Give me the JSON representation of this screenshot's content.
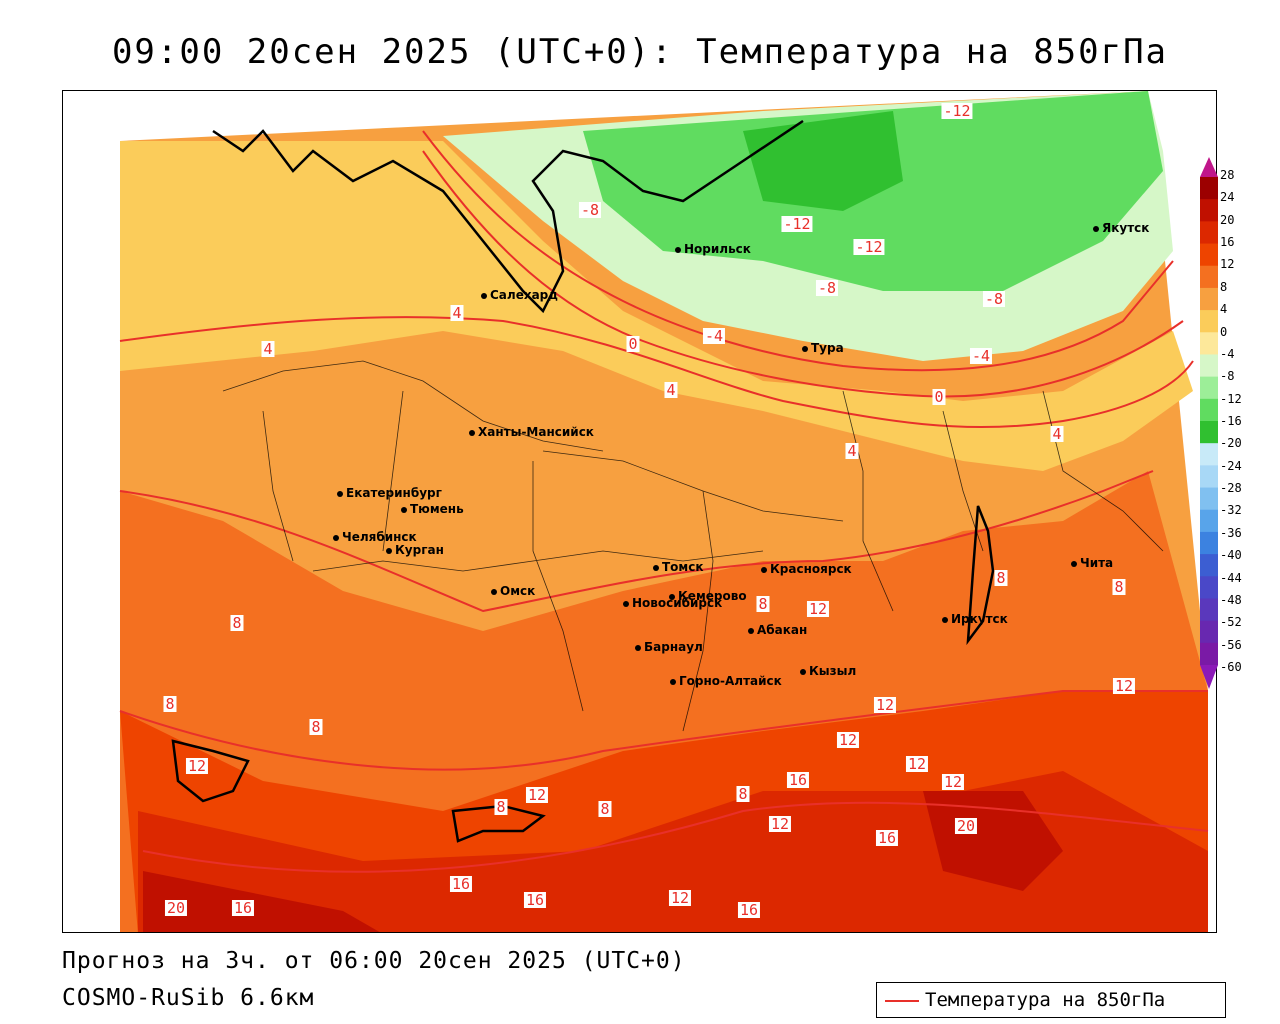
{
  "title": "09:00 20сен 2025 (UTC+0): Температура на 850гПа",
  "footer": {
    "forecast": "Прогноз на 3ч. от 06:00 20сен 2025 (UTC+0)",
    "model": "COSMO-RuSib 6.6км"
  },
  "legend": {
    "label": "Температура на 850гПа",
    "line_color": "#e8302a"
  },
  "colorbar": {
    "ticks": [
      "28",
      "24",
      "20",
      "16",
      "12",
      "8",
      "4",
      "0",
      "-4",
      "-8",
      "-12",
      "-16",
      "-20",
      "-24",
      "-28",
      "-32",
      "-36",
      "-40",
      "-44",
      "-48",
      "-52",
      "-56",
      "-60"
    ],
    "colors": [
      "#9c0000",
      "#c01000",
      "#dc2800",
      "#ee4400",
      "#f47020",
      "#f7a040",
      "#fbcc5a",
      "#fde89a",
      "#d6f7c8",
      "#9cee98",
      "#60dc60",
      "#30c030",
      "#c8eaf8",
      "#a8d8f6",
      "#80c0f0",
      "#58a4ea",
      "#3c82e0",
      "#3c5ed2",
      "#4a48c8",
      "#5a38bc",
      "#6828b0",
      "#7a1aa6"
    ]
  },
  "cities": [
    {
      "name": "Норильск"
    },
    {
      "name": "Якутск"
    },
    {
      "name": "Салехард"
    },
    {
      "name": "Тура"
    },
    {
      "name": "Ханты-Мансийск"
    },
    {
      "name": "Екатеринбург"
    },
    {
      "name": "Тюмень"
    },
    {
      "name": "Челябинск"
    },
    {
      "name": "Курган"
    },
    {
      "name": "Омск"
    },
    {
      "name": "Новосибирск"
    },
    {
      "name": "Томск"
    },
    {
      "name": "Кемерово"
    },
    {
      "name": "Красноярск"
    },
    {
      "name": "Барнаул"
    },
    {
      "name": "Абакан"
    },
    {
      "name": "Горно-Алтайск"
    },
    {
      "name": "Кызыл"
    },
    {
      "name": "Иркутск"
    },
    {
      "name": "Чита"
    }
  ],
  "contour_labels": [
    {
      "text": "-12"
    },
    {
      "text": "-12"
    },
    {
      "text": "-12"
    },
    {
      "text": "-8"
    },
    {
      "text": "-8"
    },
    {
      "text": "-8"
    },
    {
      "text": "-4"
    },
    {
      "text": "-4"
    },
    {
      "text": "0"
    },
    {
      "text": "0"
    },
    {
      "text": "4"
    },
    {
      "text": "4"
    },
    {
      "text": "4"
    },
    {
      "text": "4"
    },
    {
      "text": "4"
    },
    {
      "text": "8"
    },
    {
      "text": "8"
    },
    {
      "text": "8"
    },
    {
      "text": "8"
    },
    {
      "text": "8"
    },
    {
      "text": "8"
    },
    {
      "text": "8"
    },
    {
      "text": "8"
    },
    {
      "text": "8"
    },
    {
      "text": "12"
    },
    {
      "text": "12"
    },
    {
      "text": "12"
    },
    {
      "text": "12"
    },
    {
      "text": "12"
    },
    {
      "text": "12"
    },
    {
      "text": "12"
    },
    {
      "text": "12"
    },
    {
      "text": "12"
    },
    {
      "text": "12"
    },
    {
      "text": "16"
    },
    {
      "text": "16"
    },
    {
      "text": "16"
    },
    {
      "text": "16"
    },
    {
      "text": "16"
    },
    {
      "text": "16"
    },
    {
      "text": "20"
    },
    {
      "text": "20"
    }
  ]
}
